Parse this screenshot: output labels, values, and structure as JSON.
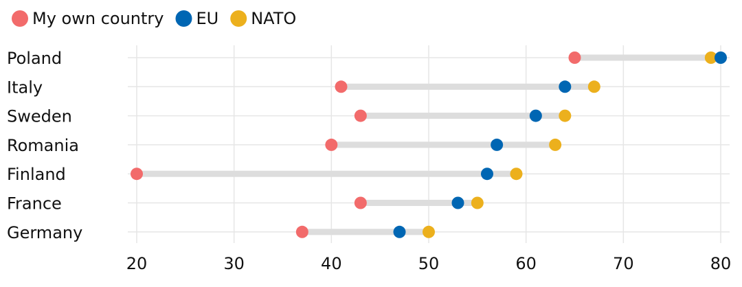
{
  "chart_data": {
    "type": "dot-range",
    "series": [
      {
        "key": "own",
        "name": "My own country",
        "color": "#F26B6B"
      },
      {
        "key": "eu",
        "name": "EU",
        "color": "#0066B3"
      },
      {
        "key": "nato",
        "name": "NATO",
        "color": "#ECB01D"
      }
    ],
    "categories": [
      "Poland",
      "Italy",
      "Sweden",
      "Romania",
      "Finland",
      "France",
      "Germany"
    ],
    "values": {
      "own": [
        65,
        41,
        43,
        40,
        20,
        43,
        37
      ],
      "eu": [
        80,
        64,
        61,
        57,
        56,
        53,
        47
      ],
      "nato": [
        79,
        67,
        64,
        63,
        59,
        55,
        50
      ]
    },
    "x_ticks": [
      "20",
      "30",
      "40",
      "50",
      "60",
      "70",
      "80"
    ],
    "xlim": [
      20,
      80
    ],
    "grid": true,
    "legend": "top-left",
    "range_bar_color": "#DDDDDD",
    "grid_color": "#E6E6E6"
  }
}
